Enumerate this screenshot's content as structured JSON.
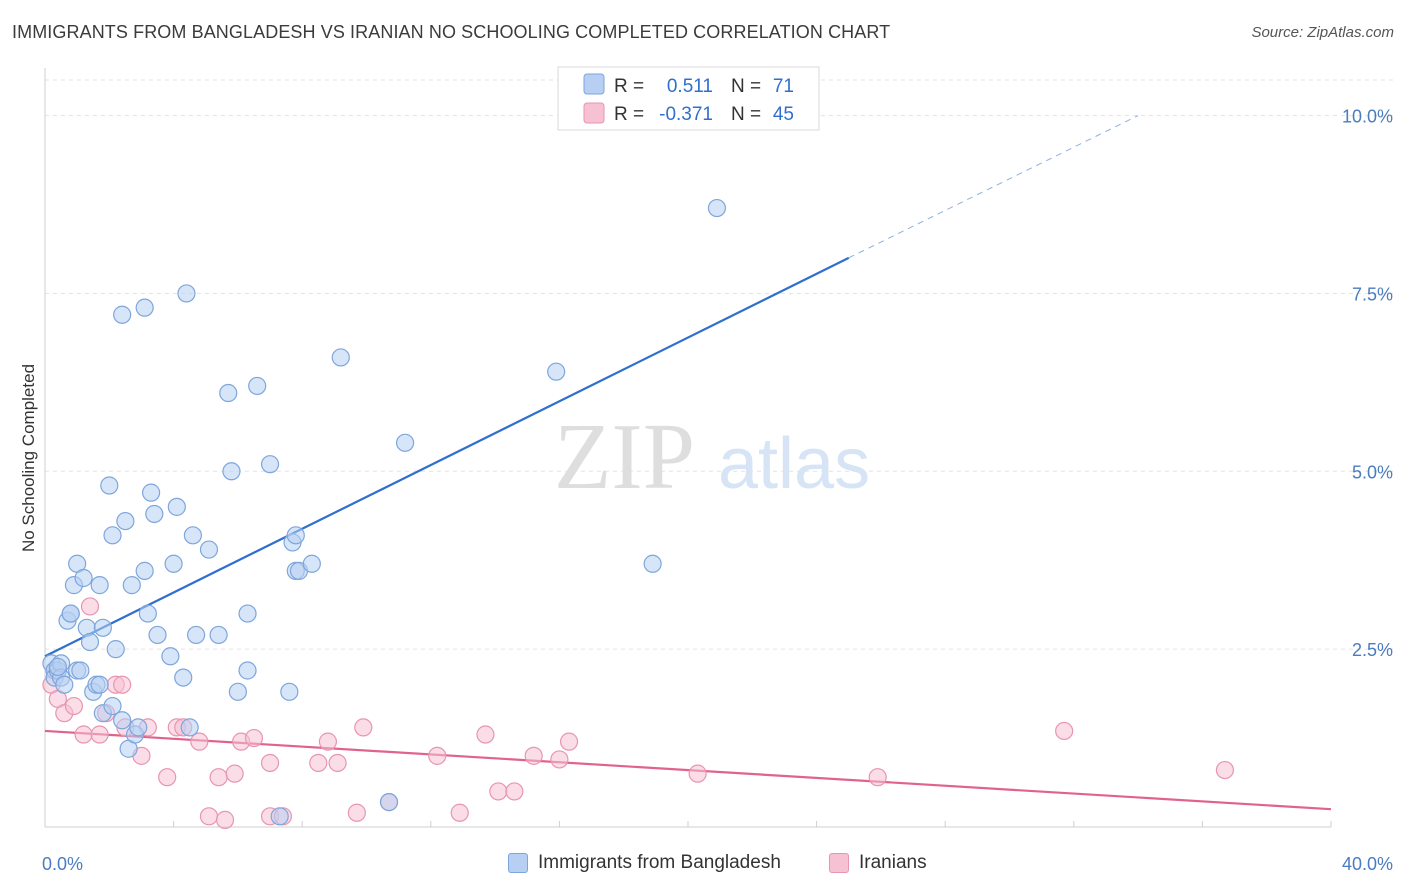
{
  "title": "IMMIGRANTS FROM BANGLADESH VS IRANIAN NO SCHOOLING COMPLETED CORRELATION CHART",
  "source": "Source: ZipAtlas.com",
  "watermark": {
    "zip": "ZIP",
    "atlas": "atlas"
  },
  "colors": {
    "blue_fill": "#b7cff2",
    "blue_stroke": "#7ea6dc",
    "blue_line": "#2f6fcf",
    "pink_fill": "#f6c1d3",
    "pink_stroke": "#e895b1",
    "pink_line": "#e0628f",
    "tick_text": "#4a7cc0",
    "grid": "#e3e3e3"
  },
  "legend": {
    "rows": [
      {
        "r_label": "R =",
        "r_value": "0.511",
        "n_label": "N =",
        "n_value": "71"
      },
      {
        "r_label": "R =",
        "r_value": "-0.371",
        "n_label": "N =",
        "n_value": "45"
      }
    ]
  },
  "chart_data": {
    "type": "scatter",
    "title": "IMMIGRANTS FROM BANGLADESH VS IRANIAN NO SCHOOLING COMPLETED CORRELATION CHART",
    "xlabel": "",
    "ylabel": "No Schooling Completed",
    "xlim": [
      0,
      40
    ],
    "ylim": [
      0,
      10.5
    ],
    "x_tick_labels": [
      "0.0%",
      "40.0%"
    ],
    "y_ticks": [
      2.5,
      5.0,
      7.5,
      10.0
    ],
    "y_tick_labels": [
      "2.5%",
      "5.0%",
      "7.5%",
      "10.0%"
    ],
    "grid": true,
    "legend_position": "top-center",
    "series": [
      {
        "name": "Immigrants from Bangladesh",
        "r": 0.511,
        "n": 71,
        "trend": {
          "x0": 0,
          "y0": 2.4,
          "x1": 25,
          "y1": 8.0,
          "dashed_to_x": 34,
          "dashed_to_y": 10.0
        },
        "points": [
          [
            0.2,
            2.3
          ],
          [
            0.3,
            2.2
          ],
          [
            0.3,
            2.1
          ],
          [
            0.4,
            2.2
          ],
          [
            0.5,
            2.3
          ],
          [
            0.5,
            2.1
          ],
          [
            0.6,
            2.0
          ],
          [
            0.7,
            2.9
          ],
          [
            0.8,
            3.0
          ],
          [
            0.8,
            3.0
          ],
          [
            0.9,
            3.4
          ],
          [
            1.0,
            2.2
          ],
          [
            1.0,
            3.7
          ],
          [
            1.1,
            2.2
          ],
          [
            1.2,
            3.5
          ],
          [
            1.3,
            2.8
          ],
          [
            1.4,
            2.6
          ],
          [
            1.5,
            1.9
          ],
          [
            1.6,
            2.0
          ],
          [
            1.7,
            2.0
          ],
          [
            1.7,
            3.4
          ],
          [
            1.8,
            1.6
          ],
          [
            1.8,
            2.8
          ],
          [
            2.0,
            4.8
          ],
          [
            2.1,
            4.1
          ],
          [
            2.1,
            1.7
          ],
          [
            2.2,
            2.5
          ],
          [
            2.4,
            1.5
          ],
          [
            2.4,
            7.2
          ],
          [
            2.5,
            4.3
          ],
          [
            2.6,
            1.1
          ],
          [
            2.7,
            3.4
          ],
          [
            2.8,
            1.3
          ],
          [
            2.9,
            1.4
          ],
          [
            3.1,
            7.3
          ],
          [
            3.1,
            3.6
          ],
          [
            3.2,
            3.0
          ],
          [
            3.3,
            4.7
          ],
          [
            3.4,
            4.4
          ],
          [
            3.5,
            2.7
          ],
          [
            3.9,
            2.4
          ],
          [
            4.0,
            3.7
          ],
          [
            4.1,
            4.5
          ],
          [
            4.3,
            2.1
          ],
          [
            4.4,
            7.5
          ],
          [
            4.5,
            1.4
          ],
          [
            4.6,
            4.1
          ],
          [
            4.7,
            2.7
          ],
          [
            5.1,
            3.9
          ],
          [
            5.4,
            2.7
          ],
          [
            5.7,
            6.1
          ],
          [
            5.8,
            5.0
          ],
          [
            6.0,
            1.9
          ],
          [
            6.3,
            2.2
          ],
          [
            6.3,
            3.0
          ],
          [
            6.6,
            6.2
          ],
          [
            7.0,
            5.1
          ],
          [
            7.3,
            0.15
          ],
          [
            7.6,
            1.9
          ],
          [
            7.7,
            4.0
          ],
          [
            7.8,
            4.1
          ],
          [
            7.8,
            3.6
          ],
          [
            7.9,
            3.6
          ],
          [
            8.3,
            3.7
          ],
          [
            9.2,
            6.6
          ],
          [
            10.7,
            0.35
          ],
          [
            11.2,
            5.4
          ],
          [
            15.9,
            6.4
          ],
          [
            18.9,
            3.7
          ],
          [
            20.9,
            8.7
          ],
          [
            0.4,
            2.25
          ]
        ]
      },
      {
        "name": "Iranians",
        "r": -0.371,
        "n": 45,
        "trend": {
          "x0": 0,
          "y0": 1.35,
          "x1": 40,
          "y1": 0.25
        },
        "points": [
          [
            0.2,
            2.0
          ],
          [
            0.3,
            2.2
          ],
          [
            0.4,
            1.8
          ],
          [
            0.6,
            1.6
          ],
          [
            0.9,
            1.7
          ],
          [
            1.2,
            1.3
          ],
          [
            1.4,
            3.1
          ],
          [
            1.7,
            1.3
          ],
          [
            1.9,
            1.6
          ],
          [
            2.2,
            2.0
          ],
          [
            2.4,
            2.0
          ],
          [
            2.5,
            1.4
          ],
          [
            3.0,
            1.0
          ],
          [
            3.2,
            1.4
          ],
          [
            3.8,
            0.7
          ],
          [
            4.1,
            1.4
          ],
          [
            4.3,
            1.4
          ],
          [
            4.8,
            1.2
          ],
          [
            5.1,
            0.15
          ],
          [
            5.4,
            0.7
          ],
          [
            5.6,
            0.1
          ],
          [
            5.9,
            0.75
          ],
          [
            6.1,
            1.2
          ],
          [
            6.5,
            1.25
          ],
          [
            7.0,
            0.9
          ],
          [
            7.0,
            0.15
          ],
          [
            7.4,
            0.15
          ],
          [
            8.5,
            0.9
          ],
          [
            8.8,
            1.2
          ],
          [
            9.1,
            0.9
          ],
          [
            9.7,
            0.2
          ],
          [
            9.9,
            1.4
          ],
          [
            10.7,
            0.35
          ],
          [
            12.2,
            1.0
          ],
          [
            12.9,
            0.2
          ],
          [
            13.7,
            1.3
          ],
          [
            14.1,
            0.5
          ],
          [
            14.6,
            0.5
          ],
          [
            15.2,
            1.0
          ],
          [
            16.0,
            0.95
          ],
          [
            16.3,
            1.2
          ],
          [
            20.3,
            0.75
          ],
          [
            25.9,
            0.7
          ],
          [
            31.7,
            1.35
          ],
          [
            36.7,
            0.8
          ]
        ]
      }
    ]
  }
}
